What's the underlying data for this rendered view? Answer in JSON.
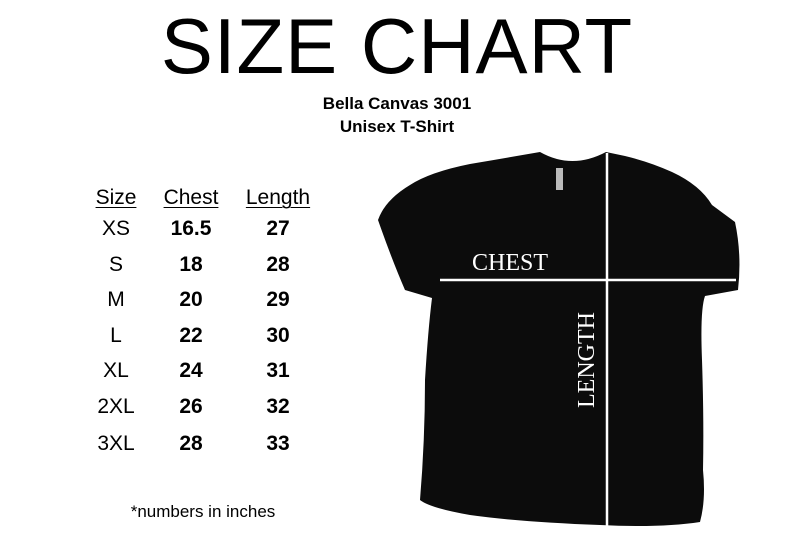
{
  "title": "SIZE CHART",
  "product": {
    "name": "Bella Canvas 3001",
    "type": "Unisex T-Shirt"
  },
  "table": {
    "headers": [
      "Size",
      "Chest",
      "Length"
    ],
    "rows": [
      [
        "XS",
        "16.5",
        "27"
      ],
      [
        "S",
        "18",
        "28"
      ],
      [
        "M",
        "20",
        "29"
      ],
      [
        "L",
        "22",
        "30"
      ],
      [
        "XL",
        "24",
        "31"
      ],
      [
        "2XL",
        "26",
        "32"
      ],
      [
        "3XL",
        "28",
        "33"
      ]
    ]
  },
  "note": "*numbers in inches",
  "diagram": {
    "chest_label": "CHEST",
    "length_label": "LENGTH",
    "shirt_color": "#0c0c0c",
    "line_color": "#ffffff"
  }
}
